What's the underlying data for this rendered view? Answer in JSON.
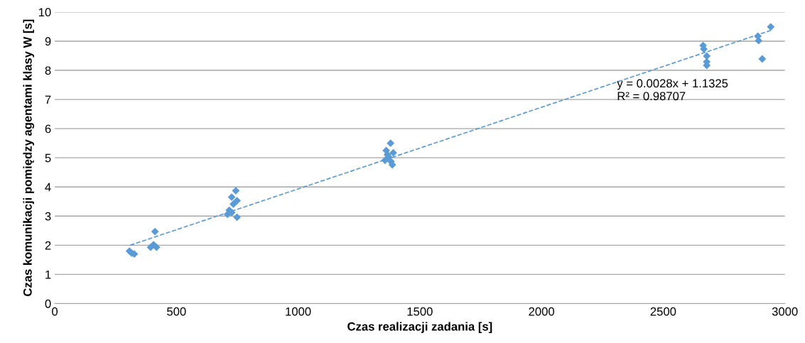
{
  "chart_data": {
    "type": "scatter",
    "xlabel": "Czas realizacji zadania [s]",
    "ylabel": "Czas komunikacji pomiędzy agentami klasy W [s]",
    "series": [
      {
        "color": "#5b9bd5",
        "marker": "diamond",
        "x": [
          307,
          316,
          327,
          412,
          406,
          394,
          418,
          744,
          727,
          749,
          734,
          717,
          727,
          710,
          749,
          1380,
          1362,
          1391,
          1367,
          1372,
          1357,
          1382,
          1387,
          2664,
          2667,
          2679,
          2679,
          2679,
          2889,
          2892,
          2907,
          2942
        ],
        "values": [
          1.8,
          1.73,
          1.7,
          2.47,
          2.02,
          1.93,
          1.93,
          3.87,
          3.65,
          3.53,
          3.41,
          3.2,
          3.12,
          3.06,
          2.96,
          5.5,
          5.25,
          5.17,
          5.11,
          5.03,
          4.91,
          4.87,
          4.76,
          8.85,
          8.73,
          8.49,
          8.29,
          8.17,
          9.17,
          9.02,
          8.39,
          9.49
        ]
      },
      {
        "type": "line",
        "color": "#5b9bd5",
        "line_style": "dashed",
        "marker": "none",
        "x": [
          310,
          2942
        ],
        "values": [
          2.0,
          9.37
        ]
      }
    ],
    "xlim": [
      0,
      3000
    ],
    "xticks": [
      0,
      500,
      1000,
      1500,
      2000,
      2500,
      3000
    ],
    "ylim": [
      0,
      10
    ],
    "yticks": [
      0,
      1,
      2,
      3,
      4,
      5,
      6,
      7,
      8,
      9,
      10
    ],
    "grid": "y",
    "annotations": [
      "y = 0.0028x + 1.1325\nR² = 0.98707"
    ]
  }
}
